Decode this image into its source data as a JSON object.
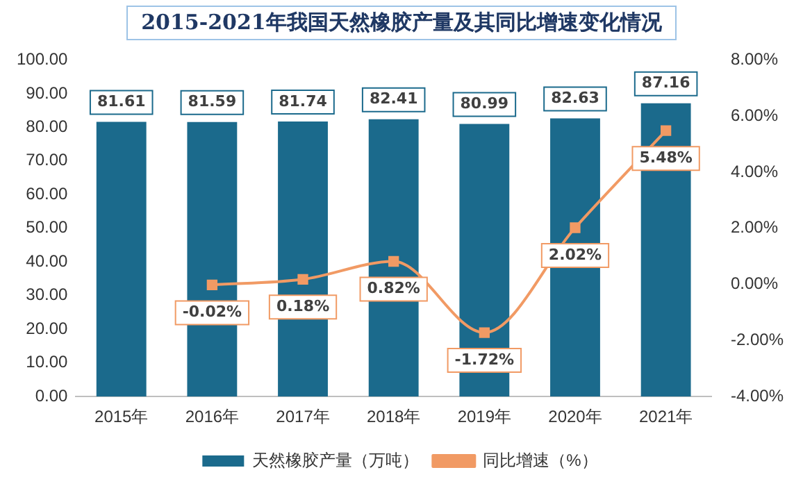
{
  "chart_data": {
    "type": "bar",
    "title": "2015-2021年我国天然橡胶产量及其同比增速变化情况",
    "categories": [
      "2015年",
      "2016年",
      "2017年",
      "2018年",
      "2019年",
      "2020年",
      "2021年"
    ],
    "series": [
      {
        "name": "天然橡胶产量（万吨）",
        "color": "#1b6a8c",
        "values": [
          81.61,
          81.59,
          81.74,
          82.41,
          80.99,
          82.63,
          87.16
        ],
        "value_labels": [
          "81.61",
          "81.59",
          "81.74",
          "82.41",
          "80.99",
          "82.63",
          "87.16"
        ]
      },
      {
        "name": "同比增速（%）",
        "type": "line",
        "axis": "y2",
        "color": "#f19a64",
        "marker": "square",
        "values": [
          null,
          -0.02,
          0.18,
          0.82,
          -1.72,
          2.02,
          5.48
        ],
        "value_labels": [
          null,
          "-0.02%",
          "0.18%",
          "0.82%",
          "-1.72%",
          "2.02%",
          "5.48%"
        ]
      }
    ],
    "ylim": [
      0,
      100
    ],
    "yticks": [
      {
        "value": 0,
        "label": "0.00"
      },
      {
        "value": 10,
        "label": "10.00"
      },
      {
        "value": 20,
        "label": "20.00"
      },
      {
        "value": 30,
        "label": "30.00"
      },
      {
        "value": 40,
        "label": "40.00"
      },
      {
        "value": 50,
        "label": "50.00"
      },
      {
        "value": 60,
        "label": "60.00"
      },
      {
        "value": 70,
        "label": "70.00"
      },
      {
        "value": 80,
        "label": "80.00"
      },
      {
        "value": 90,
        "label": "90.00"
      },
      {
        "value": 100,
        "label": "100.00"
      }
    ],
    "y2lim": [
      -4,
      8
    ],
    "y2ticks": [
      {
        "value": -4,
        "label": "-4.00%"
      },
      {
        "value": -2,
        "label": "-2.00%"
      },
      {
        "value": 0,
        "label": "0.00%"
      },
      {
        "value": 2,
        "label": "2.00%"
      },
      {
        "value": 4,
        "label": "4.00%"
      },
      {
        "value": 6,
        "label": "6.00%"
      },
      {
        "value": 8,
        "label": "8.00%"
      }
    ],
    "grid": false,
    "legend": "bottom"
  }
}
